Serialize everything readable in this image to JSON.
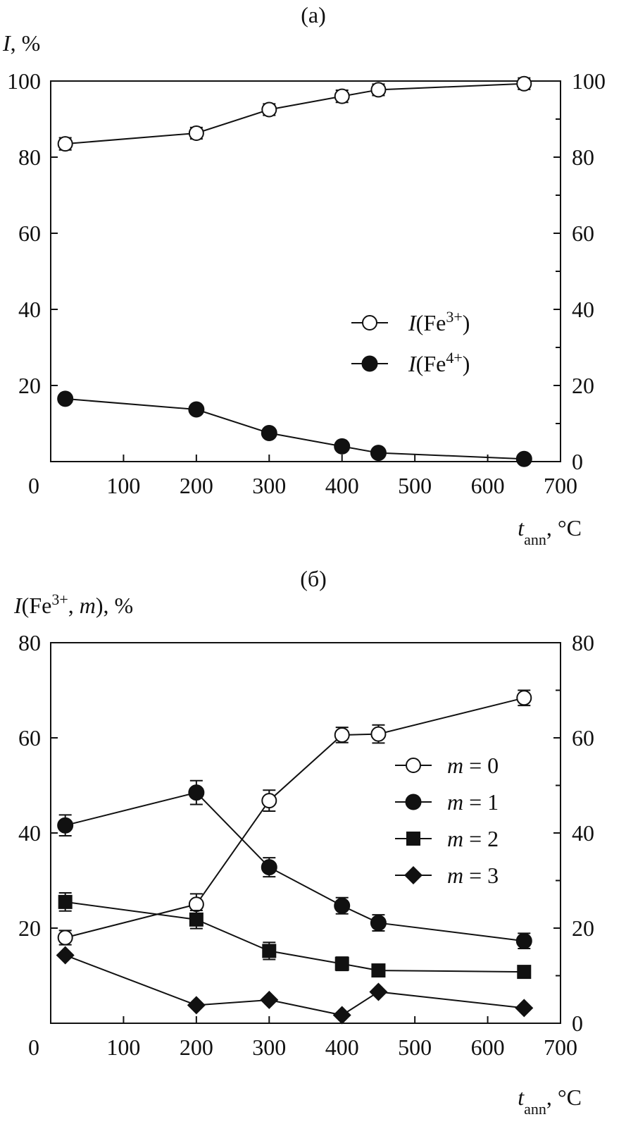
{
  "chart_data": [
    {
      "panel": "(a)",
      "type": "scatter",
      "ylabel": "I, %",
      "ylabel_parts": {
        "symbol": "I",
        "rest": ", %"
      },
      "xlabel_parts": {
        "symbol": "t",
        "sub": "ann",
        "rest": ", °C"
      },
      "xlim": [
        0,
        700
      ],
      "ylim": [
        0,
        100
      ],
      "xticks": [
        "0",
        "100",
        "200",
        "300",
        "400",
        "500",
        "600",
        "700"
      ],
      "yticks": [
        "20",
        "40",
        "60",
        "80",
        "100"
      ],
      "yticks_right": [
        "0",
        "20",
        "40",
        "60",
        "80",
        "100"
      ],
      "legend_position": "center-right",
      "grid": false,
      "series": [
        {
          "name": "I(Fe3+)",
          "legend": {
            "symbol": "I",
            "open": "(Fe",
            "sup": "3+",
            "close": ")"
          },
          "marker": "open-circle",
          "x": [
            20,
            200,
            300,
            400,
            450,
            650
          ],
          "y": [
            83.5,
            86.3,
            92.5,
            96.0,
            97.7,
            99.3
          ],
          "err": [
            1.6,
            1.5,
            1.5,
            1.6,
            1.5,
            1.5
          ]
        },
        {
          "name": "I(Fe4+)",
          "legend": {
            "symbol": "I",
            "open": "(Fe",
            "sup": "4+",
            "close": ")"
          },
          "marker": "filled-circle",
          "x": [
            20,
            200,
            300,
            400,
            450,
            650
          ],
          "y": [
            16.5,
            13.7,
            7.5,
            4.0,
            2.3,
            0.7
          ],
          "err": [
            0,
            0,
            0,
            0,
            0,
            0
          ]
        }
      ]
    },
    {
      "panel": "(б)",
      "type": "scatter",
      "ylabel": "I(Fe3+, m), %",
      "ylabel_parts": {
        "symbol": "I",
        "open": "(Fe",
        "sup": "3+",
        "mid": ", ",
        "m": "m",
        "rest": "), %"
      },
      "xlabel_parts": {
        "symbol": "t",
        "sub": "ann",
        "rest": ", °C"
      },
      "xlim": [
        0,
        700
      ],
      "ylim": [
        0,
        80
      ],
      "xticks": [
        "0",
        "100",
        "200",
        "300",
        "400",
        "500",
        "600",
        "700"
      ],
      "yticks": [
        "20",
        "40",
        "60",
        "80"
      ],
      "yticks_right": [
        "0",
        "20",
        "40",
        "60",
        "80"
      ],
      "legend_position": "upper-right",
      "grid": false,
      "series": [
        {
          "name": "m = 0",
          "legend": {
            "m": "m",
            "rest": " = 0"
          },
          "marker": "open-circle",
          "x": [
            20,
            200,
            300,
            400,
            450,
            650
          ],
          "y": [
            18.0,
            25.0,
            46.8,
            60.6,
            60.8,
            68.4
          ],
          "err": [
            1.5,
            2.2,
            2.2,
            1.6,
            1.9,
            1.6
          ]
        },
        {
          "name": "m = 1",
          "legend": {
            "m": "m",
            "rest": " = 1"
          },
          "marker": "filled-circle",
          "x": [
            20,
            200,
            300,
            400,
            450,
            650
          ],
          "y": [
            41.6,
            48.5,
            32.8,
            24.7,
            21.1,
            17.3
          ],
          "err": [
            2.2,
            2.5,
            2.0,
            1.7,
            1.7,
            1.6
          ]
        },
        {
          "name": "m = 2",
          "legend": {
            "m": "m",
            "rest": " = 2"
          },
          "marker": "filled-square",
          "x": [
            20,
            200,
            300,
            400,
            450,
            650
          ],
          "y": [
            25.5,
            21.8,
            15.2,
            12.5,
            11.1,
            10.8
          ],
          "err": [
            1.9,
            1.9,
            1.8,
            1.4,
            0.9,
            0.8
          ]
        },
        {
          "name": "m = 3",
          "legend": {
            "m": "m",
            "rest": " = 3"
          },
          "marker": "filled-diamond",
          "x": [
            20,
            200,
            300,
            400,
            450,
            650
          ],
          "y": [
            14.3,
            3.8,
            4.9,
            1.7,
            6.6,
            3.2
          ],
          "err": [
            0,
            0,
            0,
            0,
            0,
            0
          ]
        }
      ]
    }
  ]
}
